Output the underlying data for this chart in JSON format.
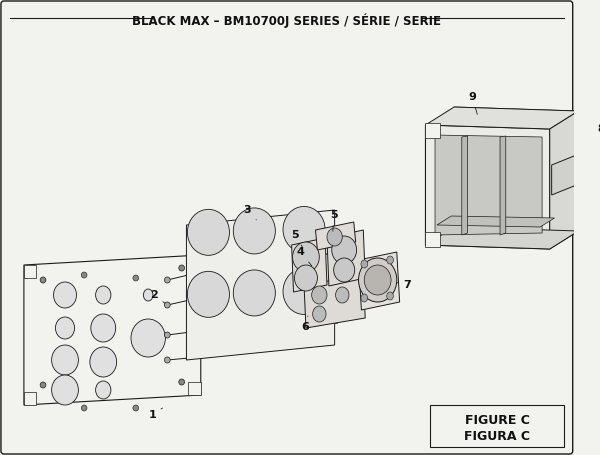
{
  "title": "BLACK MAX – BM10700J SERIES / SÉRIE / SERIE",
  "figure_label": "FIGURE C",
  "figura_label": "FIGURA C",
  "bg_color": "#f2f2ee",
  "border_color": "#1a1a1a",
  "line_color": "#1a1a1a",
  "text_color": "#111111",
  "title_fontsize": 8.5,
  "figsize": [
    6.0,
    4.55
  ],
  "dpi": 100
}
